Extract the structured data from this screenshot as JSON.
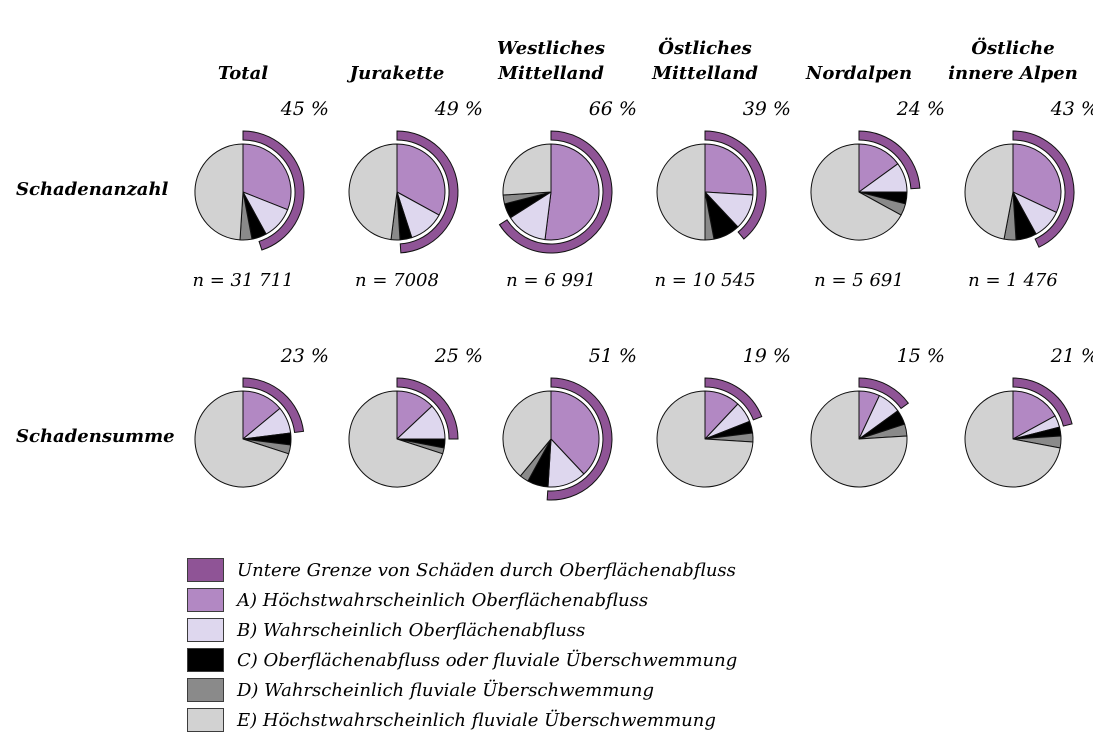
{
  "chart_data": {
    "type": "pie",
    "description": "Pie charts of damage classification by region; outer dark-purple arc marks the lower-bound share of surface-runoff damages",
    "unit": "%",
    "percent_suffix": " %",
    "columns": [
      {
        "lines": [
          "Total"
        ]
      },
      {
        "lines": [
          "Jurakette"
        ]
      },
      {
        "lines": [
          "Westliches",
          "Mittelland"
        ]
      },
      {
        "lines": [
          "Östliches",
          "Mittelland"
        ]
      },
      {
        "lines": [
          "Nordalpen"
        ]
      },
      {
        "lines": [
          "Östliche",
          "innere Alpen"
        ]
      }
    ],
    "colors": {
      "arc": "#8f5496",
      "A": "#b288c3",
      "B": "#ded7ee",
      "C": "#000000",
      "D": "#8a8a8a",
      "E": "#d2d2d2"
    },
    "rows": [
      {
        "label": "Schadenanzahl",
        "pies": [
          {
            "region": "Total",
            "percent": 45,
            "n_label": "n = 31 711",
            "slices": {
              "A": 31,
              "B": 11,
              "C": 5,
              "D": 4,
              "E": 49
            }
          },
          {
            "region": "Jurakette",
            "percent": 49,
            "n_label": "n = 7008",
            "slices": {
              "A": 33,
              "B": 12,
              "C": 4,
              "D": 3,
              "E": 48
            }
          },
          {
            "region": "Westliches Mittelland",
            "percent": 66,
            "n_label": "n = 6 991",
            "slices": {
              "A": 52,
              "B": 14,
              "C": 5,
              "D": 3,
              "E": 26
            }
          },
          {
            "region": "Östliches Mittelland",
            "percent": 39,
            "n_label": "n = 10 545",
            "slices": {
              "A": 26,
              "B": 12,
              "C": 9,
              "D": 3,
              "E": 50
            }
          },
          {
            "region": "Nordalpen",
            "percent": 24,
            "n_label": "n = 5 691",
            "slices": {
              "A": 15,
              "B": 10,
              "C": 4,
              "D": 4,
              "E": 67
            }
          },
          {
            "region": "Östliche innere Alpen",
            "percent": 43,
            "n_label": "n = 1 476",
            "slices": {
              "A": 32,
              "B": 10,
              "C": 7,
              "D": 4,
              "E": 47
            }
          }
        ]
      },
      {
        "label": "Schadensumme",
        "pies": [
          {
            "region": "Total",
            "percent": 23,
            "slices": {
              "A": 14,
              "B": 9,
              "C": 4,
              "D": 3,
              "E": 70
            }
          },
          {
            "region": "Jurakette",
            "percent": 25,
            "slices": {
              "A": 13,
              "B": 12,
              "C": 3,
              "D": 2,
              "E": 70
            }
          },
          {
            "region": "Westliches Mittelland",
            "percent": 51,
            "slices": {
              "A": 38,
              "B": 13,
              "C": 7,
              "D": 3,
              "E": 39
            }
          },
          {
            "region": "Östliches Mittelland",
            "percent": 19,
            "slices": {
              "A": 12,
              "B": 7,
              "C": 4,
              "D": 3,
              "E": 74
            }
          },
          {
            "region": "Nordalpen",
            "percent": 15,
            "slices": {
              "A": 7,
              "B": 8,
              "C": 5,
              "D": 4,
              "E": 76
            }
          },
          {
            "region": "Östliche innere Alpen",
            "percent": 21,
            "slices": {
              "A": 17,
              "B": 4,
              "C": 3,
              "D": 4,
              "E": 72
            }
          }
        ]
      }
    ],
    "legend": [
      {
        "key": "arc",
        "label": "Untere Grenze von Schäden durch Oberflächenabfluss"
      },
      {
        "key": "A",
        "label": "A) Höchstwahrscheinlich Oberflächenabfluss"
      },
      {
        "key": "B",
        "label": "B) Wahrscheinlich Oberflächenabfluss"
      },
      {
        "key": "C",
        "label": "C) Oberflächenabfluss oder fluviale Überschwemmung"
      },
      {
        "key": "D",
        "label": "D) Wahrscheinlich fluviale Überschwemmung"
      },
      {
        "key": "E",
        "label": "E) Höchstwahrscheinlich fluviale Überschwemmung"
      }
    ]
  }
}
